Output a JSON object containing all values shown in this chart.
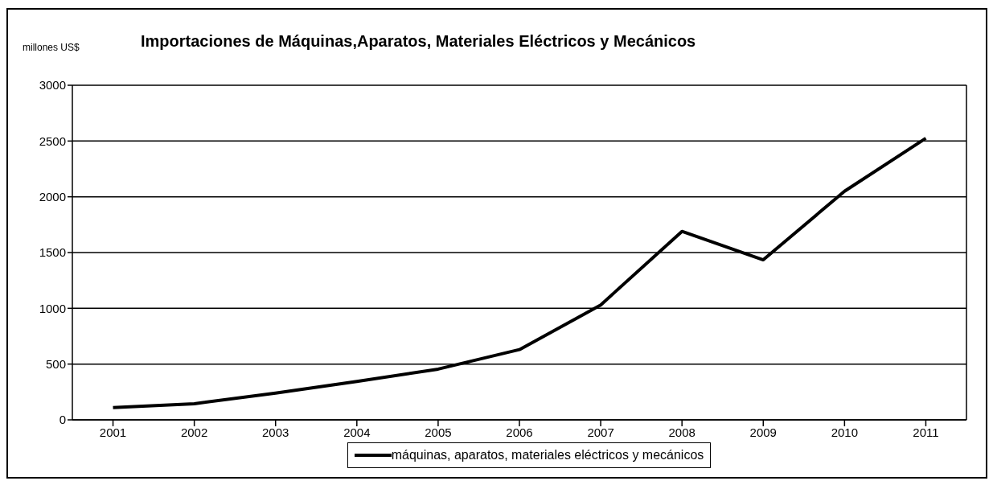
{
  "chart_data": {
    "type": "line",
    "title": "Importaciones de Máquinas,Aparatos, Materiales Eléctricos y Mecánicos",
    "ylabel": "millones US$",
    "categories": [
      "2001",
      "2002",
      "2003",
      "2004",
      "2005",
      "2006",
      "2007",
      "2008",
      "2009",
      "2010",
      "2011"
    ],
    "series": [
      {
        "name": "máquinas, aparatos, materiales eléctricos y mecánicos",
        "color": "#000000",
        "values": [
          110,
          145,
          240,
          345,
          455,
          630,
          1030,
          1690,
          1435,
          2050,
          2525
        ]
      }
    ],
    "ylim": [
      0,
      3000
    ],
    "yticks": [
      0,
      500,
      1000,
      1500,
      2000,
      2500,
      3000
    ],
    "grid": "y",
    "legend": "bottom",
    "marker": "none",
    "line_style": "solid"
  }
}
